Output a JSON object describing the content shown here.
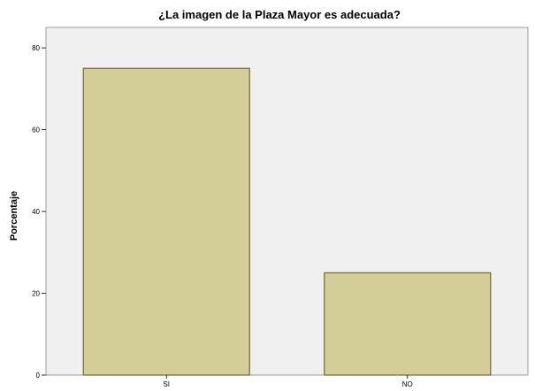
{
  "chart_data": {
    "type": "bar",
    "title": "¿La imagen de la Plaza Mayor es adecuada?",
    "xlabel": "",
    "ylabel": "Porcentaje",
    "categories": [
      "SI",
      "NO"
    ],
    "values": [
      75,
      25
    ],
    "ylim": [
      0,
      85
    ],
    "yticks": [
      0,
      20,
      40,
      60,
      80
    ],
    "grid": false,
    "legend": "none",
    "colors": {
      "plot_background": "#f0f0f0",
      "bar_fill": "#d3ce97",
      "bar_stroke": "#6e6a3c",
      "frame": "#888888"
    }
  }
}
